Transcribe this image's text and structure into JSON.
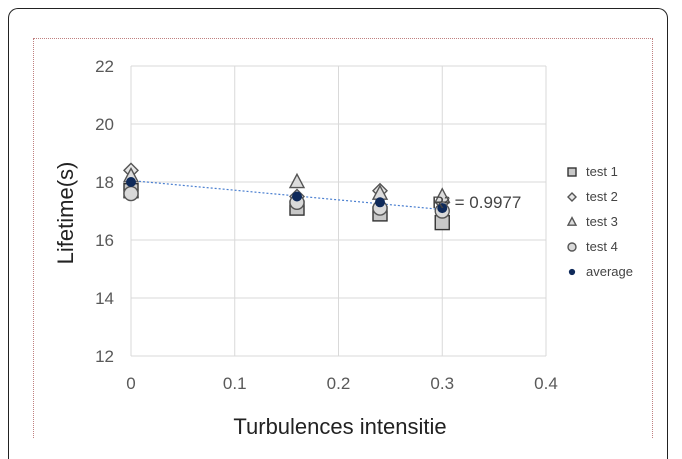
{
  "chart_data": {
    "type": "scatter",
    "xlabel": "Turbulences intensitie",
    "ylabel": "Lifetime(s)",
    "xlim": [
      0,
      0.4
    ],
    "ylim": [
      12,
      22
    ],
    "x_ticks": [
      "0",
      "0.1",
      "0.2",
      "0.3",
      "0.4"
    ],
    "y_ticks": [
      "12",
      "14",
      "16",
      "18",
      "20",
      "22"
    ],
    "grid": true,
    "legend_position": "right",
    "series": [
      {
        "name": "test 1",
        "marker": "square",
        "x": [
          0,
          0.16,
          0.24,
          0.3
        ],
        "y": [
          17.7,
          17.1,
          16.9,
          16.6
        ]
      },
      {
        "name": "test 2",
        "marker": "diamond",
        "x": [
          0,
          0.16,
          0.24,
          0.3
        ],
        "y": [
          18.4,
          17.5,
          17.7,
          17.3
        ]
      },
      {
        "name": "test 3",
        "marker": "triangle",
        "x": [
          0,
          0.16,
          0.24,
          0.3
        ],
        "y": [
          18.2,
          18.0,
          17.6,
          17.5
        ]
      },
      {
        "name": "test 4",
        "marker": "circle",
        "x": [
          0,
          0.16,
          0.24,
          0.3
        ],
        "y": [
          17.6,
          17.3,
          17.1,
          17.0
        ]
      },
      {
        "name": "average",
        "marker": "dot",
        "x": [
          0,
          0.16,
          0.24,
          0.3
        ],
        "y": [
          18.0,
          17.5,
          17.3,
          17.1
        ]
      }
    ],
    "trendline": {
      "x": [
        0,
        0.3
      ],
      "y": [
        18.05,
        17.05
      ],
      "style": "dotted",
      "color": "#4a7fd0"
    },
    "annotation": "R² = 0.9977"
  }
}
